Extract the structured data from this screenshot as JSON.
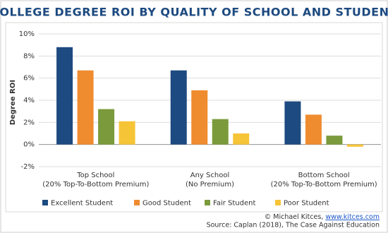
{
  "chart_data": {
    "type": "bar",
    "title": "COLLEGE DEGREE ROI BY QUALITY OF SCHOOL AND STUDENT",
    "y_label": "Degree ROI",
    "categories": [
      [
        "Top School",
        "(20% Top-To-Bottom Premium)"
      ],
      [
        "Any School",
        "(No Premium)"
      ],
      [
        "Bottom School",
        "(20% Top-To-Bottom Premium)"
      ]
    ],
    "series": [
      {
        "name": "Excellent Student",
        "color": "#1d4a80",
        "values": [
          8.8,
          6.7,
          3.9
        ]
      },
      {
        "name": "Good Student",
        "color": "#ef8c30",
        "values": [
          6.7,
          4.9,
          2.7
        ]
      },
      {
        "name": "Fair Student",
        "color": "#7b9a3c",
        "values": [
          3.2,
          2.3,
          0.8
        ]
      },
      {
        "name": "Poor Student",
        "color": "#f6c437",
        "values": [
          2.1,
          1.0,
          -0.2
        ]
      }
    ],
    "ylim": [
      -2,
      10
    ],
    "yticks": [
      {
        "value": -2,
        "label": "-2%"
      },
      {
        "value": 0,
        "label": "0%"
      },
      {
        "value": 2,
        "label": "2%"
      },
      {
        "value": 4,
        "label": "4%"
      },
      {
        "value": 6,
        "label": "6%"
      },
      {
        "value": 8,
        "label": "8%"
      },
      {
        "value": 10,
        "label": "10%"
      }
    ],
    "grid": true,
    "legend": "bottom",
    "credit": "© Michael Kitces,",
    "credit_link": "www.kitces.com",
    "source": "Source: Caplan (2018), The Case Against Education"
  }
}
